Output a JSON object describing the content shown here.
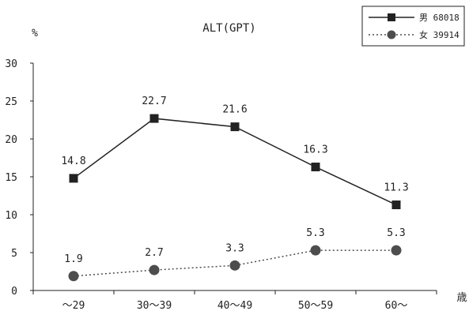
{
  "chart_data": {
    "type": "line",
    "title": "ALT(GPT)",
    "ylabel": "%",
    "xlabel": "歳",
    "ylim": [
      0,
      30
    ],
    "yticks": [
      0,
      5,
      10,
      15,
      20,
      25,
      30
    ],
    "categories": [
      "～29",
      "30～39",
      "40～49",
      "50～59",
      "60～"
    ],
    "grid": false,
    "legend_position": "top-right",
    "series": [
      {
        "name": "男 68018",
        "values": [
          14.8,
          22.7,
          21.6,
          16.3,
          11.3
        ],
        "labels": [
          "14.8",
          "22.7",
          "21.6",
          "16.3",
          "11.3"
        ],
        "marker": "square",
        "line": "solid",
        "color": "#222222"
      },
      {
        "name": "女 39914",
        "values": [
          1.9,
          2.7,
          3.3,
          5.3,
          5.3
        ],
        "labels": [
          "1.9",
          "2.7",
          "3.3",
          "5.3",
          "5.3"
        ],
        "marker": "circle",
        "line": "dotted",
        "color": "#4d4d4d"
      }
    ]
  }
}
